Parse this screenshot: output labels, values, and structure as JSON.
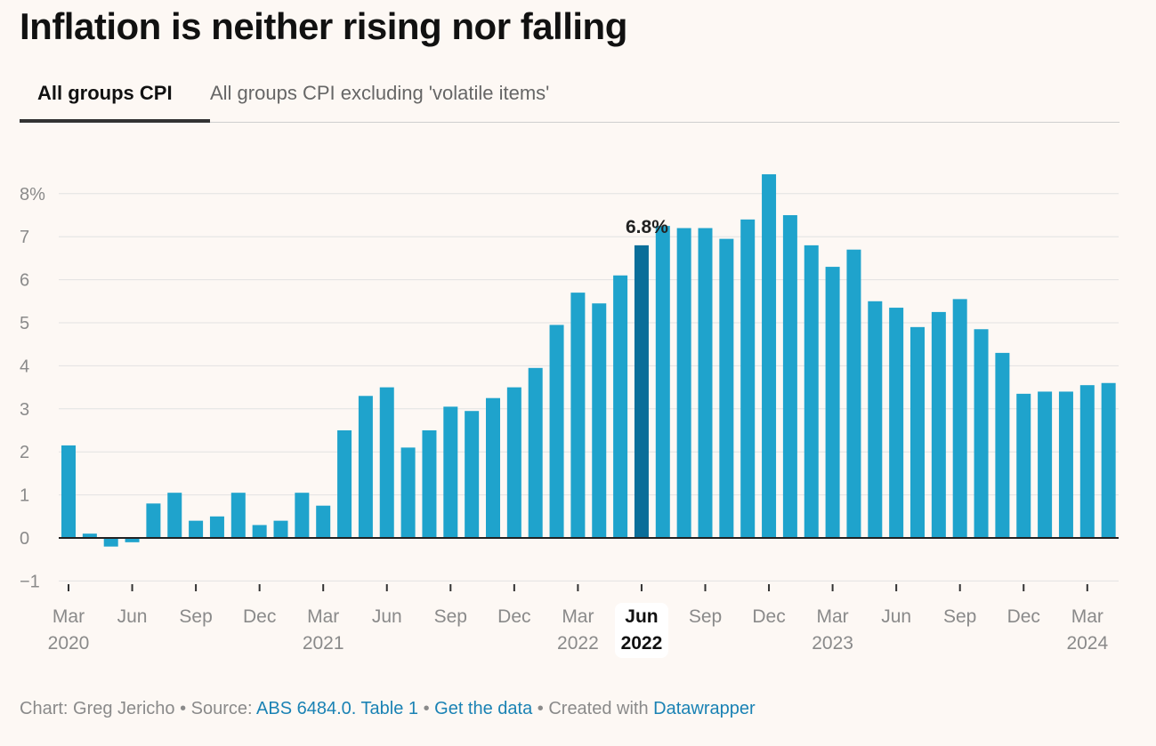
{
  "header": {
    "title": "Inflation is neither rising nor falling"
  },
  "tabs": [
    {
      "label": "All groups CPI",
      "active": true
    },
    {
      "label": "All groups CPI excluding 'volatile items'",
      "active": false
    }
  ],
  "chart_data": {
    "type": "bar",
    "unit": "%",
    "ylim": [
      -1,
      8.5
    ],
    "yticks": [
      {
        "value": 8,
        "label": "8%"
      },
      {
        "value": 7,
        "label": "7"
      },
      {
        "value": 6,
        "label": "6"
      },
      {
        "value": 5,
        "label": "5"
      },
      {
        "value": 4,
        "label": "4"
      },
      {
        "value": 3,
        "label": "3"
      },
      {
        "value": 2,
        "label": "2"
      },
      {
        "value": 1,
        "label": "1"
      },
      {
        "value": 0,
        "label": "0"
      },
      {
        "value": -1,
        "label": "−1"
      }
    ],
    "grid": true,
    "x": [
      "2020-03",
      "2020-04",
      "2020-05",
      "2020-06",
      "2020-07",
      "2020-08",
      "2020-09",
      "2020-10",
      "2020-11",
      "2020-12",
      "2021-01",
      "2021-02",
      "2021-03",
      "2021-04",
      "2021-05",
      "2021-06",
      "2021-07",
      "2021-08",
      "2021-09",
      "2021-10",
      "2021-11",
      "2021-12",
      "2022-01",
      "2022-02",
      "2022-03",
      "2022-04",
      "2022-05",
      "2022-06",
      "2022-07",
      "2022-08",
      "2022-09",
      "2022-10",
      "2022-11",
      "2022-12",
      "2023-01",
      "2023-02",
      "2023-03",
      "2023-04",
      "2023-05",
      "2023-06",
      "2023-07",
      "2023-08",
      "2023-09",
      "2023-10",
      "2023-11",
      "2023-12",
      "2024-01",
      "2024-02",
      "2024-03",
      "2024-04"
    ],
    "values": [
      2.15,
      0.1,
      -0.2,
      -0.1,
      0.8,
      1.05,
      0.4,
      0.5,
      1.05,
      0.3,
      0.4,
      1.05,
      0.75,
      2.5,
      3.3,
      3.5,
      2.1,
      2.5,
      3.05,
      2.95,
      3.25,
      3.5,
      3.95,
      4.95,
      5.7,
      5.45,
      6.1,
      6.8,
      7.25,
      7.2,
      7.2,
      6.95,
      7.4,
      8.45,
      7.5,
      6.8,
      6.3,
      6.7,
      5.5,
      5.35,
      4.9,
      5.25,
      5.55,
      4.85,
      4.3,
      3.35,
      3.4,
      3.4,
      3.55,
      3.6
    ],
    "highlight_index": 27,
    "annotation": {
      "index": 27,
      "label": "6.8%"
    },
    "xticks": [
      {
        "index": 0,
        "month": "Mar",
        "year": "2020"
      },
      {
        "index": 3,
        "month": "Jun",
        "year": ""
      },
      {
        "index": 6,
        "month": "Sep",
        "year": ""
      },
      {
        "index": 9,
        "month": "Dec",
        "year": ""
      },
      {
        "index": 12,
        "month": "Mar",
        "year": "2021"
      },
      {
        "index": 15,
        "month": "Jun",
        "year": ""
      },
      {
        "index": 18,
        "month": "Sep",
        "year": ""
      },
      {
        "index": 21,
        "month": "Dec",
        "year": ""
      },
      {
        "index": 24,
        "month": "Mar",
        "year": "2022"
      },
      {
        "index": 27,
        "month": "Jun",
        "year": "2022",
        "bold": true
      },
      {
        "index": 30,
        "month": "Sep",
        "year": ""
      },
      {
        "index": 33,
        "month": "Dec",
        "year": ""
      },
      {
        "index": 36,
        "month": "Mar",
        "year": "2023"
      },
      {
        "index": 39,
        "month": "Jun",
        "year": ""
      },
      {
        "index": 42,
        "month": "Sep",
        "year": ""
      },
      {
        "index": 45,
        "month": "Dec",
        "year": ""
      },
      {
        "index": 48,
        "month": "Mar",
        "year": "2024"
      }
    ],
    "colors": {
      "bar": "#1fa3cc",
      "highlight": "#0a6e99",
      "grid": "#e2e2e2",
      "axis": "#222222",
      "tick_label": "#8a8a8a"
    }
  },
  "footer": {
    "prefix": "Chart: Greg Jericho • Source: ",
    "source_link": "ABS 6484.0. Table 1",
    "sep1": " • ",
    "data_link": "Get the data",
    "sep2": " • Created with ",
    "dw_link": "Datawrapper"
  }
}
